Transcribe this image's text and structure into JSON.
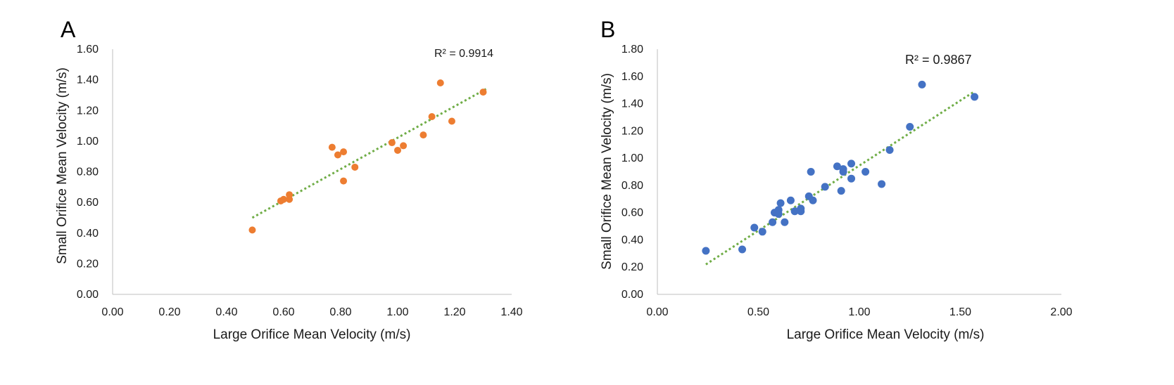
{
  "chart_data": [
    {
      "type": "scatter",
      "panel_label": "A",
      "xlabel": "Large Orifice Mean Velocity (m/s)",
      "ylabel": "Small Orifice Mean Velocity (m/s)",
      "xlim": [
        0,
        1.4
      ],
      "ylim": [
        0,
        1.6
      ],
      "xticks": [
        "0.00",
        "0.20",
        "0.40",
        "0.60",
        "0.80",
        "1.00",
        "1.20",
        "1.40"
      ],
      "yticks": [
        "0.00",
        "0.20",
        "0.40",
        "0.60",
        "0.80",
        "1.00",
        "1.20",
        "1.40",
        "1.60"
      ],
      "r2_label": "R² = 0.9914",
      "marker_color": "#ED7D31",
      "trend_color": "#70AD47",
      "trendline": {
        "x": [
          0.49,
          1.31
        ],
        "y": [
          0.5,
          1.34
        ]
      },
      "points": [
        {
          "x": 0.49,
          "y": 0.42
        },
        {
          "x": 0.59,
          "y": 0.61
        },
        {
          "x": 0.6,
          "y": 0.62
        },
        {
          "x": 0.62,
          "y": 0.62
        },
        {
          "x": 0.62,
          "y": 0.65
        },
        {
          "x": 0.77,
          "y": 0.96
        },
        {
          "x": 0.79,
          "y": 0.91
        },
        {
          "x": 0.81,
          "y": 0.74
        },
        {
          "x": 0.81,
          "y": 0.93
        },
        {
          "x": 0.85,
          "y": 0.83
        },
        {
          "x": 0.98,
          "y": 0.99
        },
        {
          "x": 1.0,
          "y": 0.94
        },
        {
          "x": 1.02,
          "y": 0.97
        },
        {
          "x": 1.09,
          "y": 1.04
        },
        {
          "x": 1.12,
          "y": 1.16
        },
        {
          "x": 1.15,
          "y": 1.38
        },
        {
          "x": 1.19,
          "y": 1.13
        },
        {
          "x": 1.3,
          "y": 1.32
        }
      ]
    },
    {
      "type": "scatter",
      "panel_label": "B",
      "xlabel": "Large Orifice Mean Velocity (m/s)",
      "ylabel": "Small Orifice Mean Velocity (m/s)",
      "xlim": [
        0,
        2.0
      ],
      "ylim": [
        0,
        1.8
      ],
      "xticks": [
        "0.00",
        "0.50",
        "1.00",
        "1.50",
        "2.00"
      ],
      "yticks": [
        "0.00",
        "0.20",
        "0.40",
        "0.60",
        "0.80",
        "1.00",
        "1.20",
        "1.40",
        "1.60",
        "1.80"
      ],
      "r2_label": "R² = 0.9867",
      "marker_color": "#4472C4",
      "trend_color": "#70AD47",
      "trendline": {
        "x": [
          0.24,
          1.57
        ],
        "y": [
          0.22,
          1.49
        ]
      },
      "points": [
        {
          "x": 0.24,
          "y": 0.32
        },
        {
          "x": 0.42,
          "y": 0.33
        },
        {
          "x": 0.48,
          "y": 0.49
        },
        {
          "x": 0.52,
          "y": 0.46
        },
        {
          "x": 0.57,
          "y": 0.53
        },
        {
          "x": 0.58,
          "y": 0.6
        },
        {
          "x": 0.6,
          "y": 0.59
        },
        {
          "x": 0.6,
          "y": 0.62
        },
        {
          "x": 0.61,
          "y": 0.67
        },
        {
          "x": 0.63,
          "y": 0.53
        },
        {
          "x": 0.66,
          "y": 0.69
        },
        {
          "x": 0.68,
          "y": 0.61
        },
        {
          "x": 0.71,
          "y": 0.61
        },
        {
          "x": 0.71,
          "y": 0.63
        },
        {
          "x": 0.75,
          "y": 0.72
        },
        {
          "x": 0.76,
          "y": 0.9
        },
        {
          "x": 0.77,
          "y": 0.69
        },
        {
          "x": 0.83,
          "y": 0.79
        },
        {
          "x": 0.89,
          "y": 0.94
        },
        {
          "x": 0.91,
          "y": 0.76
        },
        {
          "x": 0.92,
          "y": 0.9
        },
        {
          "x": 0.92,
          "y": 0.92
        },
        {
          "x": 0.96,
          "y": 0.85
        },
        {
          "x": 0.96,
          "y": 0.96
        },
        {
          "x": 1.03,
          "y": 0.9
        },
        {
          "x": 1.11,
          "y": 0.81
        },
        {
          "x": 1.15,
          "y": 1.06
        },
        {
          "x": 1.25,
          "y": 1.23
        },
        {
          "x": 1.31,
          "y": 1.54
        },
        {
          "x": 1.57,
          "y": 1.45
        }
      ]
    }
  ]
}
